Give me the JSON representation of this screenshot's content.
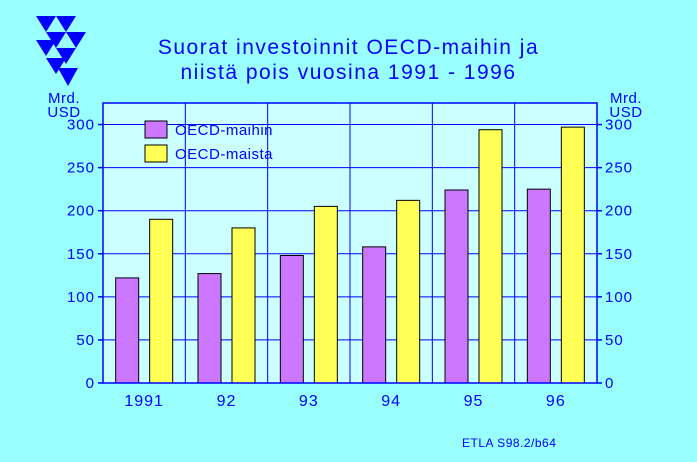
{
  "header": {
    "title_line1": "Suorat investoinnit OECD-maihin ja",
    "title_line2": "niistä pois vuosina 1991 - 1996"
  },
  "unit_left": {
    "line1": "Mrd.",
    "line2": "USD"
  },
  "unit_right": {
    "line1": "Mrd.",
    "line2": "USD"
  },
  "source": "ETLA S98.2/b64",
  "logo": {
    "icon": "etla-logo-icon",
    "color": "#0000ff"
  },
  "chart_data": {
    "type": "bar",
    "categories": [
      "1991",
      "92",
      "93",
      "94",
      "95",
      "96"
    ],
    "series": [
      {
        "name": "OECD-maihin",
        "color": "#cc77ff",
        "values": [
          122,
          127,
          148,
          158,
          224,
          225
        ]
      },
      {
        "name": "OECD-maista",
        "color": "#ffff55",
        "values": [
          190,
          180,
          205,
          212,
          294,
          297
        ]
      }
    ],
    "ylim": [
      0,
      325
    ],
    "yticks": [
      0,
      50,
      100,
      150,
      200,
      250,
      300
    ],
    "grid": true,
    "legend_position": "top-left",
    "colors": {
      "plot_background": "#ccffff",
      "page_background": "#99ffff",
      "axis": "#0000ff"
    }
  }
}
